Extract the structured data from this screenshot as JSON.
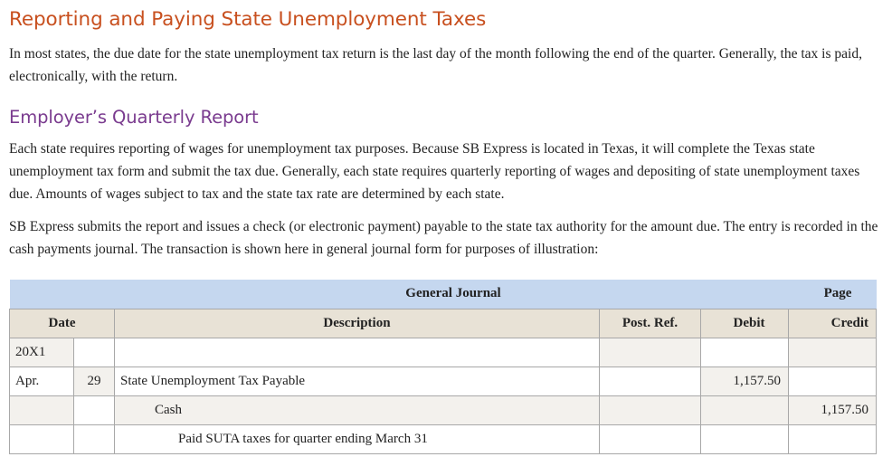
{
  "heading": "Reporting and Paying State Unemployment Taxes",
  "intro": "In most states, the due date for the state unemployment tax return is the last day of the month following the end of the quarter. Generally, the tax is paid, electronically, with the return.",
  "subheading": "Employer’s Quarterly Report",
  "paragraph1": "Each state requires reporting of wages for unemployment tax purposes. Because SB Express is located in Texas, it will complete the Texas state unemployment tax form and submit the tax due. Generally, each state requires quarterly reporting of wages and depositing of state unemployment taxes due. Amounts of wages subject to tax and the state tax rate are determined by each state.",
  "paragraph2": "SB Express submits the report and issues a check (or electronic payment) payable to the state tax authority for the amount due. The entry is recorded in the cash payments journal. The transaction is shown here in general journal form for purposes of illustration:",
  "journal": {
    "title": "General Journal",
    "page_label": "Page",
    "headers": {
      "date": "Date",
      "description": "Description",
      "post_ref": "Post. Ref.",
      "debit": "Debit",
      "credit": "Credit"
    },
    "rows": [
      {
        "month": "20X1",
        "day": "",
        "description": "",
        "post_ref": "",
        "debit": "",
        "credit": ""
      },
      {
        "month": "Apr.",
        "day": "29",
        "description": "State Unemployment Tax Payable",
        "post_ref": "",
        "debit": "1,157.50",
        "credit": ""
      },
      {
        "month": "",
        "day": "",
        "description": "Cash",
        "post_ref": "",
        "debit": "",
        "credit": "1,157.50"
      },
      {
        "month": "",
        "day": "",
        "description": "Paid SUTA taxes for quarter ending March 31",
        "post_ref": "",
        "debit": "",
        "credit": ""
      }
    ]
  }
}
